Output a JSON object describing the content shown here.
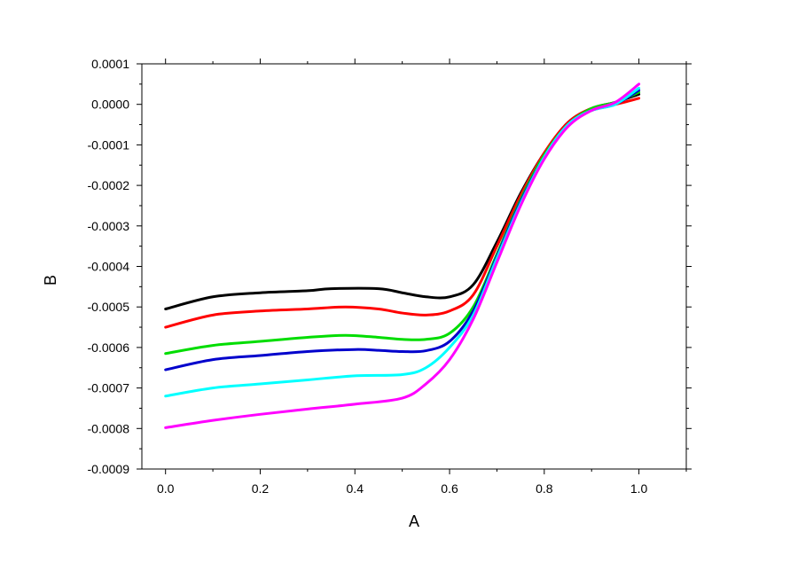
{
  "chart_data": {
    "type": "line",
    "title": "",
    "xlabel": "A",
    "ylabel": "B",
    "xlim": [
      -0.05,
      1.1
    ],
    "ylim": [
      -0.0009,
      0.0001
    ],
    "x_ticks": [
      "0.0",
      "0.2",
      "0.4",
      "0.6",
      "0.8",
      "1.0"
    ],
    "x_tick_values": [
      0.0,
      0.2,
      0.4,
      0.6,
      0.8,
      1.0
    ],
    "y_ticks": [
      "0.0001",
      "0.0000",
      "-0.0001",
      "-0.0002",
      "-0.0003",
      "-0.0004",
      "-0.0005",
      "-0.0006",
      "-0.0007",
      "-0.0008",
      "-0.0009"
    ],
    "y_tick_values": [
      0.0001,
      0.0,
      -0.0001,
      -0.0002,
      -0.0003,
      -0.0004,
      -0.0005,
      -0.0006,
      -0.0007,
      -0.0008,
      -0.0009
    ],
    "grid": false,
    "legend": "none",
    "series": [
      {
        "color": "#000000",
        "points": [
          [
            0.0,
            -0.000505
          ],
          [
            0.1,
            -0.000475
          ],
          [
            0.2,
            -0.000465
          ],
          [
            0.3,
            -0.00046
          ],
          [
            0.35,
            -0.000455
          ],
          [
            0.45,
            -0.000455
          ],
          [
            0.5,
            -0.000465
          ],
          [
            0.55,
            -0.000475
          ],
          [
            0.6,
            -0.000475
          ],
          [
            0.65,
            -0.000445
          ],
          [
            0.7,
            -0.00034
          ],
          [
            0.75,
            -0.00022
          ],
          [
            0.8,
            -0.00012
          ],
          [
            0.85,
            -4.5e-05
          ],
          [
            0.9,
            -1e-05
          ],
          [
            0.95,
            5e-06
          ],
          [
            1.0,
            2.5e-05
          ]
        ]
      },
      {
        "color": "#ff0000",
        "points": [
          [
            0.0,
            -0.00055
          ],
          [
            0.1,
            -0.00052
          ],
          [
            0.2,
            -0.00051
          ],
          [
            0.3,
            -0.000505
          ],
          [
            0.38,
            -0.0005
          ],
          [
            0.45,
            -0.000505
          ],
          [
            0.5,
            -0.000515
          ],
          [
            0.55,
            -0.00052
          ],
          [
            0.6,
            -0.00051
          ],
          [
            0.65,
            -0.00047
          ],
          [
            0.7,
            -0.00035
          ],
          [
            0.75,
            -0.000225
          ],
          [
            0.8,
            -0.00012
          ],
          [
            0.85,
            -4.5e-05
          ],
          [
            0.9,
            -1e-05
          ],
          [
            0.95,
            0.0
          ],
          [
            1.0,
            1.5e-05
          ]
        ]
      },
      {
        "color": "#00dd00",
        "points": [
          [
            0.0,
            -0.000615
          ],
          [
            0.1,
            -0.000595
          ],
          [
            0.2,
            -0.000585
          ],
          [
            0.3,
            -0.000575
          ],
          [
            0.38,
            -0.00057
          ],
          [
            0.45,
            -0.000575
          ],
          [
            0.5,
            -0.00058
          ],
          [
            0.55,
            -0.00058
          ],
          [
            0.6,
            -0.000565
          ],
          [
            0.65,
            -0.0005
          ],
          [
            0.7,
            -0.00037
          ],
          [
            0.75,
            -0.000235
          ],
          [
            0.8,
            -0.000125
          ],
          [
            0.85,
            -5e-05
          ],
          [
            0.9,
            -1e-05
          ],
          [
            0.95,
            5e-06
          ],
          [
            1.0,
            3e-05
          ]
        ]
      },
      {
        "color": "#0000cc",
        "points": [
          [
            0.0,
            -0.000655
          ],
          [
            0.1,
            -0.00063
          ],
          [
            0.2,
            -0.00062
          ],
          [
            0.3,
            -0.00061
          ],
          [
            0.4,
            -0.000605
          ],
          [
            0.45,
            -0.000607
          ],
          [
            0.5,
            -0.00061
          ],
          [
            0.55,
            -0.000608
          ],
          [
            0.6,
            -0.000585
          ],
          [
            0.65,
            -0.00051
          ],
          [
            0.7,
            -0.000375
          ],
          [
            0.75,
            -0.00024
          ],
          [
            0.8,
            -0.00013
          ],
          [
            0.85,
            -5e-05
          ],
          [
            0.9,
            -1.5e-05
          ],
          [
            0.95,
            0.0
          ],
          [
            1.0,
            3.5e-05
          ]
        ]
      },
      {
        "color": "#00ffff",
        "points": [
          [
            0.0,
            -0.00072
          ],
          [
            0.1,
            -0.0007
          ],
          [
            0.2,
            -0.00069
          ],
          [
            0.3,
            -0.00068
          ],
          [
            0.4,
            -0.00067
          ],
          [
            0.5,
            -0.000667
          ],
          [
            0.55,
            -0.00065
          ],
          [
            0.6,
            -0.0006
          ],
          [
            0.65,
            -0.00052
          ],
          [
            0.7,
            -0.00038
          ],
          [
            0.75,
            -0.000245
          ],
          [
            0.8,
            -0.00013
          ],
          [
            0.85,
            -5e-05
          ],
          [
            0.9,
            -1.5e-05
          ],
          [
            0.95,
            0.0
          ],
          [
            1.0,
            4e-05
          ]
        ]
      },
      {
        "color": "#ff00ff",
        "points": [
          [
            0.0,
            -0.000798
          ],
          [
            0.1,
            -0.00078
          ],
          [
            0.2,
            -0.000765
          ],
          [
            0.3,
            -0.000752
          ],
          [
            0.4,
            -0.00074
          ],
          [
            0.5,
            -0.000725
          ],
          [
            0.55,
            -0.00069
          ],
          [
            0.6,
            -0.00063
          ],
          [
            0.65,
            -0.00053
          ],
          [
            0.7,
            -0.00039
          ],
          [
            0.75,
            -0.00025
          ],
          [
            0.8,
            -0.000135
          ],
          [
            0.85,
            -5.5e-05
          ],
          [
            0.9,
            -1.5e-05
          ],
          [
            0.95,
            5e-06
          ],
          [
            1.0,
            5e-05
          ]
        ]
      }
    ]
  }
}
